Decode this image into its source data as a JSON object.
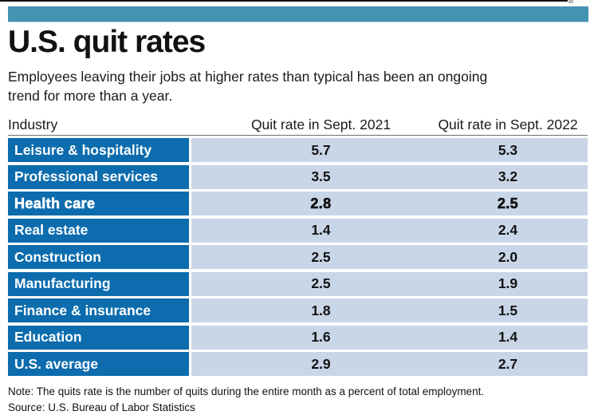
{
  "colors": {
    "accent_bar": "#4493b2",
    "row_label_bg": "#0c6cad",
    "row_value_bg": "#c9d6e8",
    "label_text": "#ffffff",
    "text": "#1a1a1a"
  },
  "header": {
    "title": "U.S. quit rates",
    "subtitle_lines": [
      "Employees leaving their jobs at higher rates than typical has been an ongoing",
      "trend for more than a year."
    ]
  },
  "table": {
    "columns": [
      "Industry",
      "Quit rate in Sept. 2021",
      "Quit rate in Sept. 2022"
    ],
    "rows": [
      {
        "industry": "Leisure & hospitality",
        "v2021": "5.7",
        "v2022": "5.3"
      },
      {
        "industry": "Professional services",
        "v2021": "3.5",
        "v2022": "3.2"
      },
      {
        "industry": "Health care",
        "v2021": "2.8",
        "v2022": "2.5",
        "emphasized": true
      },
      {
        "industry": "Real estate",
        "v2021": "1.4",
        "v2022": "2.4"
      },
      {
        "industry": "Construction",
        "v2021": "2.5",
        "v2022": "2.0"
      },
      {
        "industry": "Manufacturing",
        "v2021": "2.5",
        "v2022": "1.9"
      },
      {
        "industry": "Finance & insurance",
        "v2021": "1.8",
        "v2022": "1.5"
      },
      {
        "industry": "Education",
        "v2021": "1.6",
        "v2022": "1.4"
      },
      {
        "industry": "U.S. average",
        "v2021": "2.9",
        "v2022": "2.7"
      }
    ]
  },
  "footer": {
    "note": "Note: The quits rate is the number of quits during the entire month as a percent of total employment.",
    "source": "Source: U.S. Bureau of Labor Statistics"
  },
  "chart_data": {
    "type": "table",
    "title": "U.S. quit rates",
    "subtitle": "Employees leaving their jobs at higher rates than typical has been an ongoing trend for more than a year.",
    "categories": [
      "Leisure & hospitality",
      "Professional services",
      "Health care",
      "Real estate",
      "Construction",
      "Manufacturing",
      "Finance & insurance",
      "Education",
      "U.S. average"
    ],
    "series": [
      {
        "name": "Quit rate in Sept. 2021",
        "values": [
          5.7,
          3.5,
          2.8,
          1.4,
          2.5,
          2.5,
          1.8,
          1.6,
          2.9
        ]
      },
      {
        "name": "Quit rate in Sept. 2022",
        "values": [
          5.3,
          3.2,
          2.5,
          2.4,
          2.0,
          1.9,
          1.5,
          1.4,
          2.7
        ]
      }
    ],
    "emphasized_category": "Health care",
    "note": "The quits rate is the number of quits during the entire month as a percent of total employment.",
    "source": "U.S. Bureau of Labor Statistics"
  }
}
